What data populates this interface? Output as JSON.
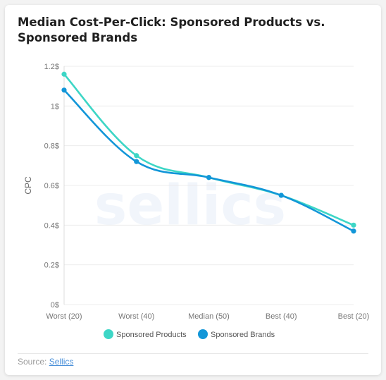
{
  "title": "Median Cost-Per-Click: Sponsored Products vs. Sponsored Brands",
  "watermark": "sellics",
  "source": {
    "label": "Source:",
    "link_text": "Sellics"
  },
  "chart_data": {
    "type": "line",
    "categories": [
      "Worst (20)",
      "Worst (40)",
      "Median (50)",
      "Best (40)",
      "Best (20)"
    ],
    "series": [
      {
        "name": "Sponsored Products",
        "color": "#3dd6c6",
        "values": [
          1.16,
          0.75,
          0.64,
          0.55,
          0.4
        ]
      },
      {
        "name": "Sponsored Brands",
        "color": "#1296d8",
        "values": [
          1.08,
          0.72,
          0.64,
          0.55,
          0.37
        ]
      }
    ],
    "ylabel": "CPC",
    "xlabel": "",
    "ylim": [
      0,
      1.2
    ],
    "yticks": [
      0,
      0.2,
      0.4,
      0.6,
      0.8,
      1,
      1.2
    ],
    "ytick_labels": [
      "0$",
      "0.2$",
      "0.4$",
      "0.6$",
      "0.8$",
      "1$",
      "1.2$"
    ],
    "grid": true,
    "legend_position": "bottom"
  }
}
